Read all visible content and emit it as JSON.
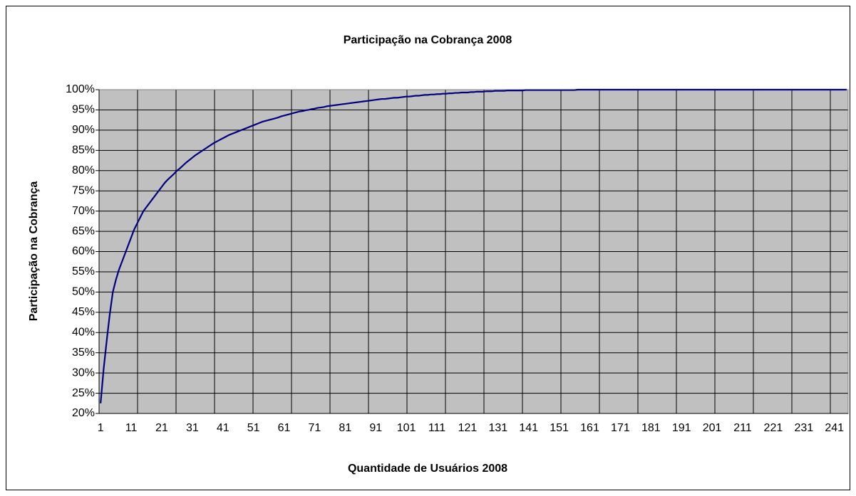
{
  "chart_data": {
    "type": "line",
    "title": "Participação na Cobrança 2008",
    "x_label": "Quantidade de Usuários 2008",
    "y_label": "Participação na Cobrança",
    "color": "#000080",
    "grid": true,
    "ylim": [
      20,
      100
    ],
    "yticks": [
      {
        "value": 20,
        "label": "20%"
      },
      {
        "value": 25,
        "label": "25%"
      },
      {
        "value": 30,
        "label": "30%"
      },
      {
        "value": 35,
        "label": "35%"
      },
      {
        "value": 40,
        "label": "40%"
      },
      {
        "value": 45,
        "label": "45%"
      },
      {
        "value": 50,
        "label": "50%"
      },
      {
        "value": 55,
        "label": "55%"
      },
      {
        "value": 60,
        "label": "60%"
      },
      {
        "value": 65,
        "label": "65%"
      },
      {
        "value": 70,
        "label": "70%"
      },
      {
        "value": 75,
        "label": "75%"
      },
      {
        "value": 80,
        "label": "80%"
      },
      {
        "value": 85,
        "label": "85%"
      },
      {
        "value": 90,
        "label": "90%"
      },
      {
        "value": 95,
        "label": "95%"
      },
      {
        "value": 100,
        "label": "100%"
      }
    ],
    "categories": [
      "1",
      null,
      null,
      null,
      null,
      null,
      null,
      null,
      null,
      null,
      "11",
      null,
      null,
      null,
      null,
      null,
      null,
      null,
      null,
      null,
      "21",
      null,
      null,
      null,
      null,
      null,
      null,
      null,
      null,
      null,
      "31",
      null,
      null,
      null,
      null,
      null,
      null,
      null,
      null,
      null,
      "41",
      null,
      null,
      null,
      null,
      null,
      null,
      null,
      null,
      null,
      "51",
      null,
      null,
      null,
      null,
      null,
      null,
      null,
      null,
      null,
      "61",
      null,
      null,
      null,
      null,
      null,
      null,
      null,
      null,
      null,
      "71",
      null,
      null,
      null,
      null,
      null,
      null,
      null,
      null,
      null,
      "81",
      null,
      null,
      null,
      null,
      null,
      null,
      null,
      null,
      null,
      "91",
      null,
      null,
      null,
      null,
      null,
      null,
      null,
      null,
      null,
      "101",
      null,
      null,
      null,
      null,
      null,
      null,
      null,
      null,
      null,
      "111",
      null,
      null,
      null,
      null,
      null,
      null,
      null,
      null,
      null,
      "121",
      null,
      null,
      null,
      null,
      null,
      null,
      null,
      null,
      null,
      "131",
      null,
      null,
      null,
      null,
      null,
      null,
      null,
      null,
      null,
      "141",
      null,
      null,
      null,
      null,
      null,
      null,
      null,
      null,
      null,
      "151",
      null,
      null,
      null,
      null,
      null,
      null,
      null,
      null,
      null,
      "161",
      null,
      null,
      null,
      null,
      null,
      null,
      null,
      null,
      null,
      "171",
      null,
      null,
      null,
      null,
      null,
      null,
      null,
      null,
      null,
      "181",
      null,
      null,
      null,
      null,
      null,
      null,
      null,
      null,
      null,
      "191",
      null,
      null,
      null,
      null,
      null,
      null,
      null,
      null,
      null,
      "201",
      null,
      null,
      null,
      null,
      null,
      null,
      null,
      null,
      null,
      "211",
      null,
      null,
      null,
      null,
      null,
      null,
      null,
      null,
      null,
      "221",
      null,
      null,
      null,
      null,
      null,
      null,
      null,
      null,
      null,
      "231",
      null,
      null,
      null,
      null,
      null,
      null,
      null,
      null,
      null,
      "241",
      null,
      null,
      null,
      null
    ],
    "values": [
      22.5,
      31,
      38,
      44.5,
      50,
      53,
      55.5,
      57.5,
      59.5,
      61.5,
      63.5,
      65.5,
      67,
      68.5,
      70,
      71,
      72,
      73,
      74,
      75,
      76,
      77,
      77.8,
      78.5,
      79.2,
      80,
      80.6,
      81.3,
      82,
      82.6,
      83.2,
      83.8,
      84.3,
      84.8,
      85.3,
      85.8,
      86.3,
      86.8,
      87.2,
      87.6,
      88,
      88.4,
      88.8,
      89.1,
      89.4,
      89.7,
      90,
      90.3,
      90.6,
      90.9,
      91.2,
      91.5,
      91.8,
      92.1,
      92.3,
      92.5,
      92.7,
      92.9,
      93.1,
      93.4,
      93.6,
      93.8,
      94,
      94.2,
      94.4,
      94.6,
      94.7,
      94.9,
      95,
      95.2,
      95.3,
      95.5,
      95.6,
      95.7,
      95.9,
      96,
      96.1,
      96.2,
      96.3,
      96.4,
      96.5,
      96.6,
      96.7,
      96.8,
      96.9,
      97,
      97.1,
      97.2,
      97.3,
      97.4,
      97.5,
      97.6,
      97.7,
      97.7,
      97.8,
      97.9,
      98,
      98,
      98.1,
      98.2,
      98.3,
      98.3,
      98.4,
      98.5,
      98.5,
      98.6,
      98.7,
      98.7,
      98.8,
      98.8,
      98.9,
      98.9,
      99,
      99,
      99.1,
      99.1,
      99.2,
      99.2,
      99.3,
      99.3,
      99.3,
      99.4,
      99.4,
      99.5,
      99.5,
      99.5,
      99.6,
      99.6,
      99.6,
      99.7,
      99.7,
      99.7,
      99.7,
      99.8,
      99.8,
      99.8,
      99.8,
      99.8,
      99.8,
      99.9,
      99.9,
      99.9,
      99.9,
      99.9,
      99.9,
      99.9,
      99.9,
      99.9,
      99.9,
      99.9,
      99.9,
      99.9,
      99.9,
      99.9,
      99.9,
      99.9,
      100,
      100,
      100,
      100,
      100,
      100,
      100,
      100,
      100,
      100,
      100,
      100,
      100,
      100,
      100,
      100,
      100,
      100,
      100,
      100,
      100,
      100,
      100,
      100,
      100,
      100,
      100,
      100,
      100,
      100,
      100,
      100,
      100,
      100,
      100,
      100,
      100,
      100,
      100,
      100,
      100,
      100,
      100,
      100,
      100,
      100,
      100,
      100,
      100,
      100,
      100,
      100,
      100,
      100,
      100,
      100,
      100,
      100,
      100,
      100,
      100,
      100,
      100,
      100,
      100,
      100,
      100,
      100,
      100,
      100,
      100,
      100,
      100,
      100,
      100,
      100,
      100,
      100,
      100,
      100,
      100,
      100,
      100,
      100,
      100,
      100,
      100,
      100,
      100
    ]
  }
}
